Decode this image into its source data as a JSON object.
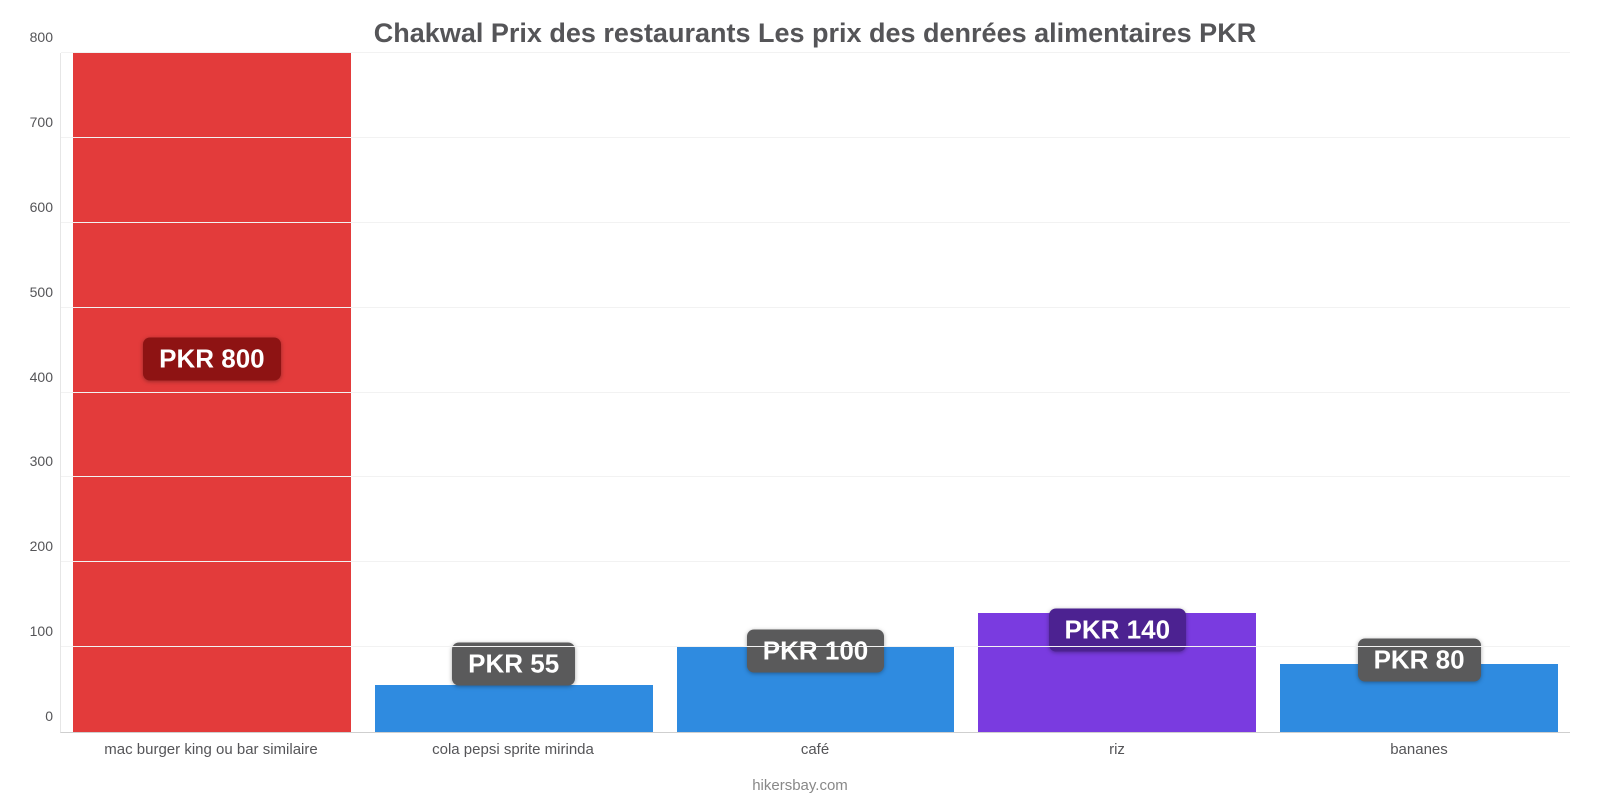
{
  "chart": {
    "type": "bar",
    "title": "Chakwal Prix des restaurants Les prix des denrées alimentaires PKR",
    "title_fontsize": 27,
    "title_color": "#555558",
    "footer": "hikersbay.com",
    "footer_color": "#888888",
    "background_color": "#ffffff",
    "grid_color": "#f2f2f2",
    "axis_color": "#555558",
    "ylim": [
      0,
      800
    ],
    "ytick_step": 100,
    "yticks": [
      0,
      100,
      200,
      300,
      400,
      500,
      600,
      700,
      800
    ],
    "bar_width_ratio": 0.92,
    "categories": [
      "mac burger king ou bar similaire",
      "cola pepsi sprite mirinda",
      "café",
      "riz",
      "bananes"
    ],
    "series": [
      {
        "value": 800,
        "display": "PKR 800",
        "bar_color": "#e33b3b",
        "label_bg": "#8e1313",
        "label_y_value": 440
      },
      {
        "value": 55,
        "display": "PKR 55",
        "bar_color": "#2f8be0",
        "label_bg": "#5a5a5b",
        "label_y_value": 80
      },
      {
        "value": 100,
        "display": "PKR 100",
        "bar_color": "#2f8be0",
        "label_bg": "#5a5a5b",
        "label_y_value": 95
      },
      {
        "value": 140,
        "display": "PKR 140",
        "bar_color": "#7a3be0",
        "label_bg": "#4c2291",
        "label_y_value": 120
      },
      {
        "value": 80,
        "display": "PKR 80",
        "bar_color": "#2f8be0",
        "label_bg": "#5a5a5b",
        "label_y_value": 85
      }
    ],
    "label_fontsize": 26,
    "tick_fontsize": 14,
    "xlabel_fontsize": 15
  }
}
